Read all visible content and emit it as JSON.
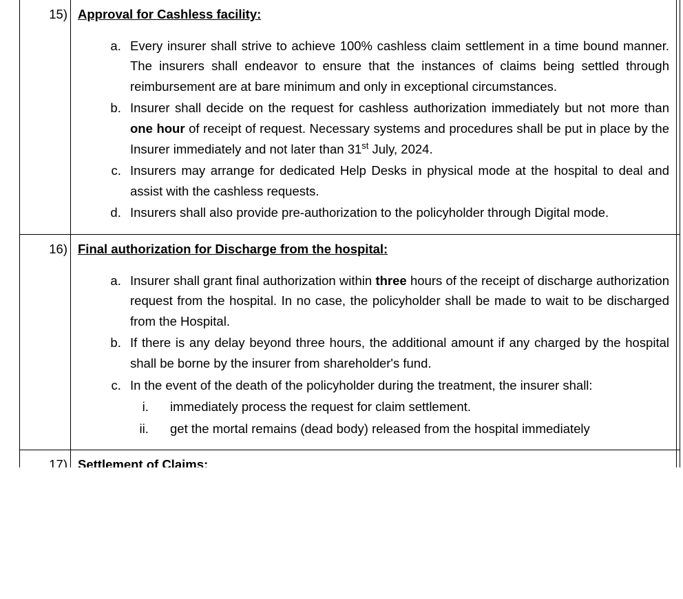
{
  "rows": [
    {
      "number": "15)",
      "heading": "Approval for Cashless facility:",
      "items": [
        {
          "prefix": "Every insurer shall strive to achieve 100% cashless claim settlement in a time bound manner. The insurers shall endeavor to ensure that the instances of claims being settled through reimbursement are at bare minimum and only in exceptional circumstances.",
          "bold": "",
          "suffix": ""
        },
        {
          "prefix": "Insurer shall decide on the request for cashless authorization immediately but not more than ",
          "bold": "one hour",
          "suffix_html": " of receipt of request.  Necessary systems and procedures shall be put in place by the Insurer immediately and not later than 31<sup>st</sup> July, 2024."
        },
        {
          "prefix": "Insurers may arrange for dedicated Help Desks in physical mode at the hospital to deal and assist with the cashless requests.",
          "bold": "",
          "suffix": ""
        },
        {
          "prefix": "Insurers shall  also provide pre-authorization to the policyholder through Digital mode.",
          "bold": "",
          "suffix": ""
        }
      ]
    },
    {
      "number": "16)",
      "heading": "Final authorization for Discharge from the hospital:",
      "items": [
        {
          "prefix": "Insurer shall grant final authorization within ",
          "bold": "three",
          "suffix": " hours of the receipt of discharge authorization request from the hospital. In no case, the policyholder shall be made to wait to be discharged from the Hospital."
        },
        {
          "prefix": "If there is any delay beyond three hours, the additional amount if any charged by the hospital shall be borne by the insurer from shareholder's fund.",
          "bold": "",
          "suffix": ""
        },
        {
          "prefix": "In the event of the death of the policyholder during the treatment, the insurer shall:",
          "bold": "",
          "suffix": "",
          "subitems": [
            "immediately process the request for claim settlement.",
            "get the mortal remains (dead body) released from the hospital immediately"
          ]
        }
      ]
    },
    {
      "number": "17)",
      "heading": "Settlement of Claims:",
      "partial": true
    }
  ]
}
